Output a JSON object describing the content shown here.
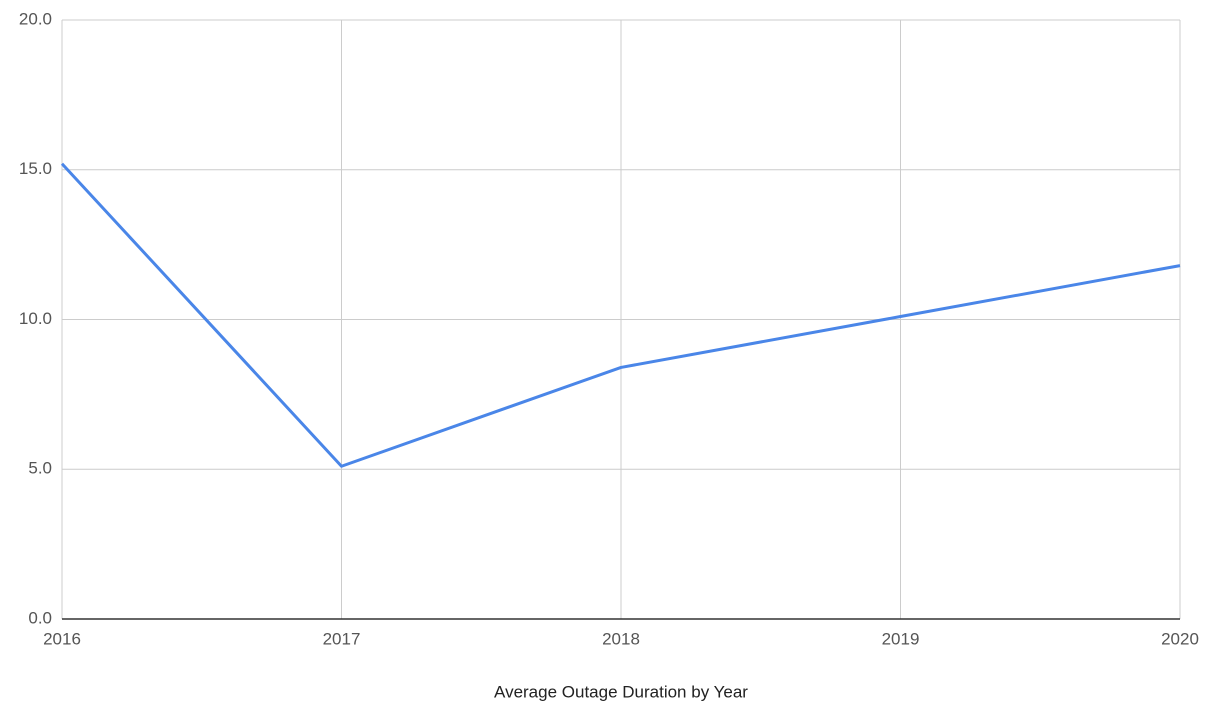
{
  "chart_data": {
    "type": "line",
    "x_label": "Average Outage Duration by Year",
    "x": [
      2016,
      2017,
      2018,
      2019,
      2020
    ],
    "series": [
      {
        "name": "Average Outage Duration",
        "color": "#4a86e8",
        "values": [
          15.2,
          5.1,
          8.4,
          10.1,
          11.8
        ]
      }
    ],
    "xlim": [
      2016,
      2020
    ],
    "xticks": [
      2016,
      2017,
      2018,
      2019,
      2020
    ],
    "ylim": [
      0,
      20
    ],
    "yticks": [
      {
        "value": 0,
        "label": "0.0"
      },
      {
        "value": 5,
        "label": "5.0"
      },
      {
        "value": 10,
        "label": "10.0"
      },
      {
        "value": 15,
        "label": "15.0"
      },
      {
        "value": 20,
        "label": "20.0"
      }
    ],
    "grid": true
  }
}
